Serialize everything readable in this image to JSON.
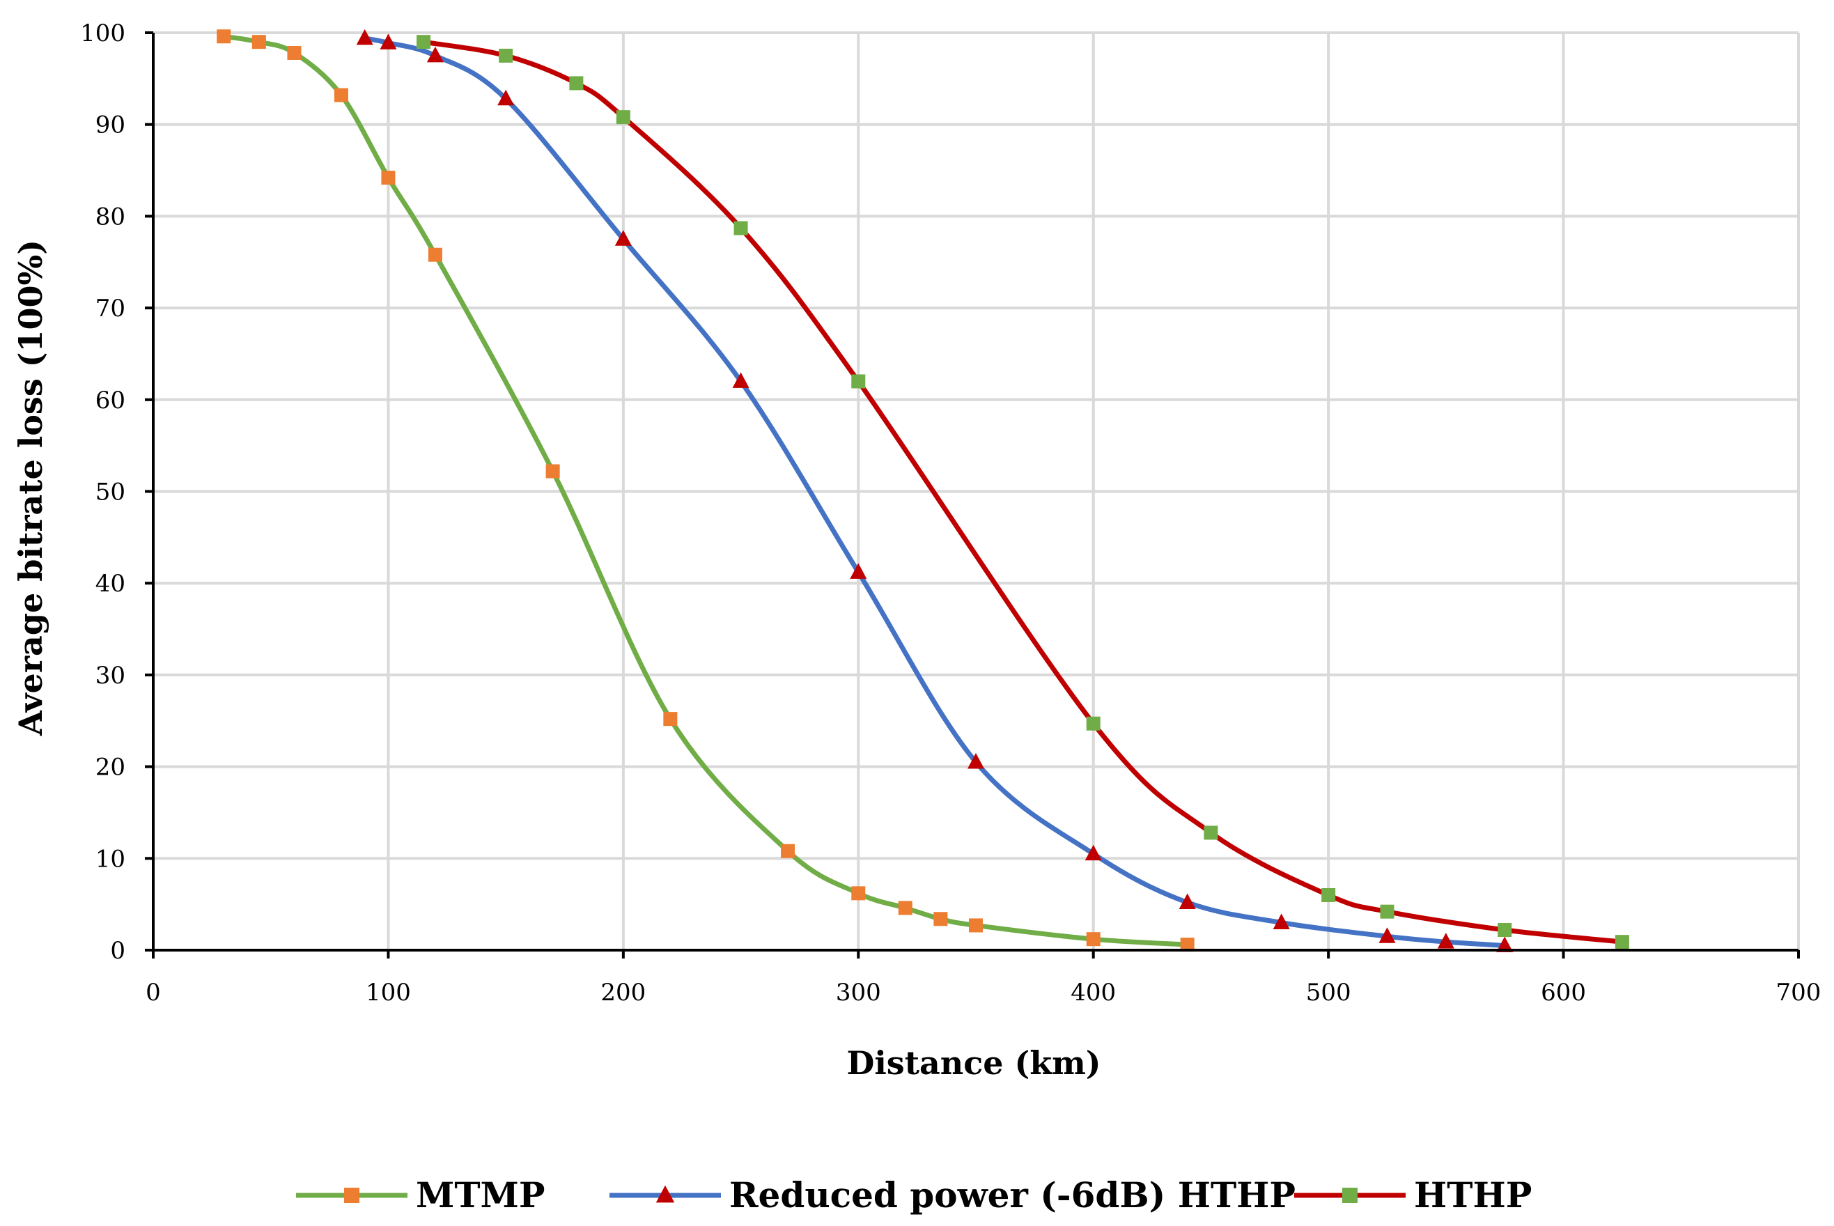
{
  "chart_data": {
    "type": "line",
    "title": "",
    "xlabel": "Distance (km)",
    "ylabel": "Average bitrate loss  (100%)",
    "xlim": [
      0,
      700
    ],
    "ylim": [
      0,
      100
    ],
    "xticks": [
      0,
      100,
      200,
      300,
      400,
      500,
      600,
      700
    ],
    "yticks": [
      0,
      10,
      20,
      30,
      40,
      50,
      60,
      70,
      80,
      90,
      100
    ],
    "grid": true,
    "legend_position": "bottom",
    "series": [
      {
        "name": "MTMP",
        "line_color": "#70AD47",
        "marker": "square",
        "marker_color": "#ED7D31",
        "x": [
          30,
          45,
          60,
          80,
          100,
          120,
          170,
          220,
          270,
          300,
          320,
          335,
          350,
          400,
          440
        ],
        "y": [
          99.6,
          99.0,
          97.8,
          93.2,
          84.2,
          75.8,
          52.2,
          25.2,
          10.8,
          6.2,
          4.6,
          3.4,
          2.7,
          1.2,
          0.6
        ]
      },
      {
        "name": "Reduced power (-6dB) HTHP",
        "line_color": "#4472C4",
        "marker": "triangle",
        "marker_color": "#C00000",
        "x": [
          90,
          100,
          120,
          150,
          200,
          250,
          300,
          350,
          400,
          440,
          480,
          525,
          550,
          575
        ],
        "y": [
          99.4,
          98.9,
          97.5,
          92.8,
          77.5,
          62.0,
          41.2,
          20.5,
          10.5,
          5.2,
          3.0,
          1.5,
          0.9,
          0.5
        ]
      },
      {
        "name": "HTHP",
        "line_color": "#C00000",
        "marker": "square",
        "marker_color": "#70AD47",
        "x": [
          115,
          150,
          180,
          200,
          250,
          300,
          400,
          450,
          500,
          525,
          575,
          625
        ],
        "y": [
          99.0,
          97.5,
          94.5,
          90.8,
          78.7,
          62.0,
          24.7,
          12.8,
          6.0,
          4.2,
          2.2,
          0.9
        ]
      }
    ]
  }
}
